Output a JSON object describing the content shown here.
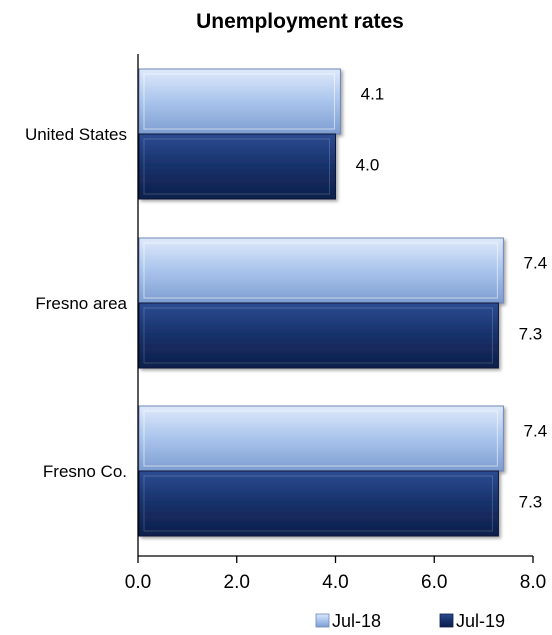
{
  "chart_data": {
    "type": "bar",
    "orientation": "horizontal",
    "title": "Unemployment rates",
    "xlabel": "",
    "ylabel": "",
    "categories": [
      "United States",
      "Fresno area",
      "Fresno Co."
    ],
    "series": [
      {
        "name": "Jul-18",
        "values": [
          4.1,
          7.4,
          7.4
        ],
        "color": "#a9c4ec"
      },
      {
        "name": "Jul-19",
        "values": [
          4.0,
          7.3,
          7.3
        ],
        "color": "#17316a"
      }
    ],
    "xlim": [
      0,
      8
    ],
    "x_ticks": [
      "0.0",
      "2.0",
      "4.0",
      "6.0",
      "8.0"
    ],
    "data_labels": [
      [
        "4.1",
        "7.4",
        "7.4"
      ],
      [
        "4.0",
        "7.3",
        "7.3"
      ]
    ],
    "grid": false,
    "legend_position": "bottom-right"
  }
}
